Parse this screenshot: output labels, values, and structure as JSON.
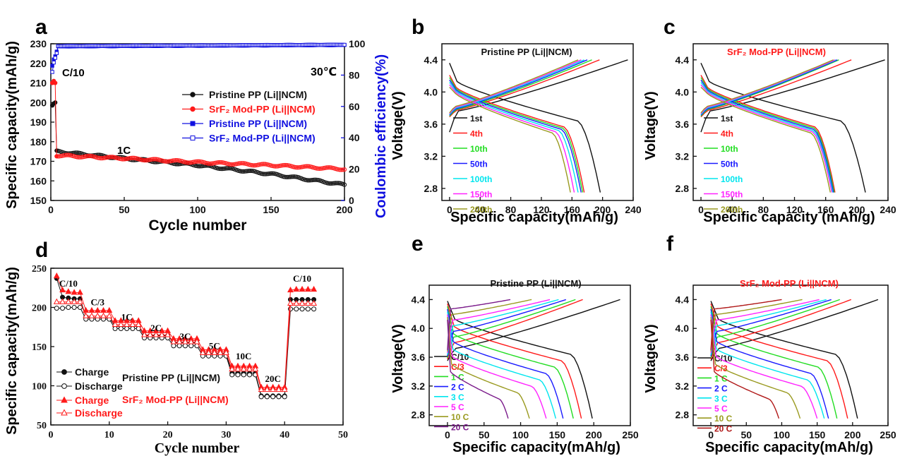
{
  "colors": {
    "black": "#111111",
    "red": "#ff1a1a",
    "blue": "#1010e0",
    "green": "#22dd22",
    "darkblue": "#1a1aff",
    "cyan": "#00e5ee",
    "magenta": "#ff22ff",
    "olive": "#9a9a20",
    "purple": "#7a1a8a",
    "darkred": "#b01818"
  },
  "chart_data": [
    {
      "id": "a",
      "type": "scatter",
      "panel_letter": "a",
      "xlabel": "Cycle number",
      "ylabel": "Specific capacity(mAh/g)",
      "y2label": "Coulombic efficiency(%)",
      "xlim": [
        0,
        200
      ],
      "ylim": [
        150,
        230
      ],
      "y2lim": [
        0,
        100
      ],
      "xticks": [
        "0",
        "50",
        "100",
        "150",
        "200"
      ],
      "yticks": [
        "150",
        "160",
        "170",
        "180",
        "190",
        "200",
        "210",
        "220",
        "230"
      ],
      "y2ticks": [
        "0",
        "20",
        "40",
        "60",
        "80",
        "100"
      ],
      "annotations": {
        "temperature": "30℃",
        "rate_low": "C/10",
        "rate_high": "1C"
      },
      "series": [
        {
          "name": "Pristine PP (Li||NCM)",
          "axis": "left",
          "marker": "half-filled circle",
          "color": "black",
          "start": [
            [
              1,
              198.5
            ],
            [
              2,
              199.5
            ],
            [
              3,
              200
            ]
          ],
          "trend": [
            [
              4,
              175
            ],
            [
              50,
              171.5
            ],
            [
              100,
              168
            ],
            [
              150,
              163.5
            ],
            [
              200,
              158
            ]
          ]
        },
        {
          "name": "SrF₂ Mod-PP (Li||NCM)",
          "axis": "left",
          "marker": "half-filled circle",
          "color": "red",
          "start": [
            [
              1,
              210
            ],
            [
              2,
              211
            ],
            [
              3,
              210
            ]
          ],
          "trend": [
            [
              4,
              173
            ],
            [
              50,
              171.5
            ],
            [
              100,
              169.5
            ],
            [
              150,
              168
            ],
            [
              200,
              166
            ]
          ]
        },
        {
          "name": "Pristine PP (Li||NCM)",
          "axis": "right",
          "marker": "filled square",
          "color": "blue",
          "start": [
            [
              1,
              86
            ],
            [
              2,
              90
            ],
            [
              3,
              92
            ],
            [
              4,
              95
            ]
          ],
          "trend": [
            [
              5,
              98.3
            ],
            [
              200,
              99.2
            ]
          ]
        },
        {
          "name": "SrF₂ Mod-PP (Li||NCM)",
          "axis": "right",
          "marker": "open square",
          "color": "blue",
          "start": [
            [
              1,
              82
            ],
            [
              2,
              88
            ],
            [
              3,
              91
            ],
            [
              4,
              94
            ]
          ],
          "trend": [
            [
              5,
              98.6
            ],
            [
              200,
              99.4
            ]
          ]
        }
      ],
      "legend": [
        {
          "label": "Pristine PP (Li||NCM)",
          "color": "black"
        },
        {
          "label": "SrF₂ Mod-PP (Li||NCM)",
          "color": "red"
        },
        {
          "label": "Pristine PP (Li||NCM)",
          "color": "blue"
        },
        {
          "label": "SrF₂ Mod-PP (Li||NCM)",
          "color": "blue"
        }
      ]
    },
    {
      "id": "b",
      "type": "line",
      "panel_letter": "b",
      "title": "Pristine PP (Li||NCM)",
      "title_color": "black",
      "xlabel": "Specific capacity(mAh/g)",
      "ylabel": "Voltage(V)",
      "xlim": [
        -10,
        240
      ],
      "ylim": [
        2.65,
        4.6
      ],
      "xticks": [
        0,
        40,
        80,
        120,
        160,
        200,
        240
      ],
      "yticks": [
        2.8,
        3.2,
        3.6,
        4.0,
        4.4
      ],
      "cycles": [
        {
          "label": "1st",
          "color": "black",
          "discharge_capacity": 197,
          "charge_capacity": 233
        },
        {
          "label": "4th",
          "color": "red",
          "discharge_capacity": 176,
          "charge_capacity": 196
        },
        {
          "label": "10th",
          "color": "green",
          "discharge_capacity": 174,
          "charge_capacity": 186
        },
        {
          "label": "50th",
          "color": "darkblue",
          "discharge_capacity": 172,
          "charge_capacity": 180
        },
        {
          "label": "100th",
          "color": "cyan",
          "discharge_capacity": 168,
          "charge_capacity": 176
        },
        {
          "label": "150th",
          "color": "magenta",
          "discharge_capacity": 163,
          "charge_capacity": 172
        },
        {
          "label": "200th",
          "color": "olive",
          "discharge_capacity": 158,
          "charge_capacity": 168
        }
      ]
    },
    {
      "id": "c",
      "type": "line",
      "panel_letter": "c",
      "title": "SrF₂ Mod-PP (Li||NCM)",
      "title_color": "red",
      "xlabel": "Specific capacity (mAh/g)",
      "ylabel": "Voltage(V)",
      "xlim": [
        -10,
        240
      ],
      "ylim": [
        2.65,
        4.6
      ],
      "xticks": [
        0,
        40,
        80,
        120,
        160,
        200,
        240
      ],
      "yticks": [
        2.8,
        3.2,
        3.6,
        4.0,
        4.4
      ],
      "cycles": [
        {
          "label": "1st",
          "color": "black",
          "discharge_capacity": 211,
          "charge_capacity": 236
        },
        {
          "label": "4th",
          "color": "red",
          "discharge_capacity": 172,
          "charge_capacity": 193
        },
        {
          "label": "10th",
          "color": "green",
          "discharge_capacity": 171,
          "charge_capacity": 177
        },
        {
          "label": "50th",
          "color": "darkblue",
          "discharge_capacity": 170,
          "charge_capacity": 175
        },
        {
          "label": "100th",
          "color": "cyan",
          "discharge_capacity": 169,
          "charge_capacity": 173
        },
        {
          "label": "150th",
          "color": "magenta",
          "discharge_capacity": 168,
          "charge_capacity": 172
        },
        {
          "label": "200th",
          "color": "olive",
          "discharge_capacity": 166,
          "charge_capacity": 170
        }
      ]
    },
    {
      "id": "d",
      "type": "scatter",
      "panel_letter": "d",
      "xlabel": "Cycle number",
      "ylabel": "Specific capacity(mAh/g)",
      "xlim": [
        0,
        50
      ],
      "ylim": [
        50,
        250
      ],
      "xticks": [
        "0",
        "10",
        "20",
        "30",
        "40",
        "50"
      ],
      "yticks": [
        "50",
        "100",
        "150",
        "200",
        "250"
      ],
      "rate_labels": [
        {
          "label": "C/10",
          "x": 3,
          "y": 225
        },
        {
          "label": "C/3",
          "x": 8,
          "y": 201
        },
        {
          "label": "1C",
          "x": 13,
          "y": 182
        },
        {
          "label": "2C",
          "x": 18,
          "y": 168
        },
        {
          "label": "3C",
          "x": 23,
          "y": 157
        },
        {
          "label": "5C",
          "x": 28,
          "y": 145
        },
        {
          "label": "10C",
          "x": 33,
          "y": 132
        },
        {
          "label": "20C",
          "x": 38,
          "y": 103
        },
        {
          "label": "C/10",
          "x": 43,
          "y": 231
        }
      ],
      "stage_note": "C/10: cycles 1-5, C/3: 6-10, 1C: 11-15, 2C: 16-20, 3C: 21-25, 5C: 26-30, 10C: 31-35, 20C: 36-40, C/10: 41-45",
      "series": [
        {
          "name": "Charge",
          "group": "Pristine PP (Li||NCM)",
          "color": "black",
          "marker": "filled circle",
          "values": [
            237,
            213,
            212,
            211,
            211,
            188,
            187,
            187,
            187,
            187,
            176,
            176,
            176,
            176,
            176,
            164,
            164,
            164,
            164,
            164,
            155,
            155,
            155,
            155,
            155,
            141,
            141,
            141,
            141,
            141,
            116,
            116,
            116,
            116,
            116,
            87,
            87,
            87,
            87,
            87,
            210,
            210,
            210,
            210,
            210
          ]
        },
        {
          "name": "Discharge",
          "group": "Pristine PP (Li||NCM)",
          "color": "black",
          "marker": "open circle",
          "values": [
            199,
            199,
            200,
            200,
            200,
            185,
            185,
            185,
            185,
            185,
            173,
            173,
            173,
            173,
            173,
            161,
            161,
            161,
            161,
            161,
            151,
            151,
            151,
            151,
            151,
            138,
            138,
            138,
            138,
            138,
            114,
            114,
            114,
            114,
            114,
            86,
            86,
            86,
            86,
            86,
            198,
            198,
            198,
            198,
            198
          ]
        },
        {
          "name": "Charge",
          "group": "SrF₂ Mod-PP (Li||NCM)",
          "color": "red",
          "marker": "filled triangle",
          "values": [
            240,
            222,
            220,
            219,
            219,
            196,
            196,
            196,
            196,
            196,
            183,
            183,
            183,
            183,
            183,
            170,
            170,
            170,
            170,
            170,
            160,
            160,
            160,
            160,
            160,
            146,
            146,
            146,
            146,
            146,
            125,
            125,
            125,
            125,
            125,
            98,
            98,
            98,
            98,
            98,
            222,
            223,
            223,
            223,
            223
          ]
        },
        {
          "name": "Discharge",
          "group": "SrF₂ Mod-PP (Li||NCM)",
          "color": "red",
          "marker": "open triangle",
          "values": [
            207,
            207,
            207,
            207,
            207,
            189,
            189,
            189,
            189,
            189,
            178,
            178,
            178,
            178,
            178,
            165,
            165,
            165,
            165,
            165,
            156,
            156,
            156,
            156,
            156,
            142,
            142,
            142,
            142,
            142,
            121,
            121,
            121,
            121,
            121,
            95,
            95,
            95,
            95,
            95,
            205,
            205,
            205,
            205,
            205
          ]
        }
      ],
      "legend": [
        {
          "label": "Charge",
          "color": "black"
        },
        {
          "label": "Discharge",
          "color": "black"
        },
        {
          "label": "Pristine PP (Li||NCM)",
          "color": "black"
        },
        {
          "label": "Charge",
          "color": "red"
        },
        {
          "label": "Discharge",
          "color": "red"
        },
        {
          "label": "SrF₂ Mod-PP (Li||NCM)",
          "color": "red"
        }
      ]
    },
    {
      "id": "e",
      "type": "line",
      "panel_letter": "e",
      "title": "Pristine PP (Li||NCM)",
      "title_color": "black",
      "xlabel": "Specific capacity(mAh/g)",
      "ylabel": "Voltage(V)",
      "xlim": [
        -25,
        250
      ],
      "ylim": [
        2.65,
        4.6
      ],
      "xticks": [
        0,
        50,
        100,
        150,
        200,
        250
      ],
      "yticks": [
        2.8,
        3.2,
        3.6,
        4.0,
        4.4
      ],
      "cycles": [
        {
          "label": "C/10",
          "color": "black",
          "discharge_capacity": 198,
          "charge_capacity": 236
        },
        {
          "label": "C/3",
          "color": "red",
          "discharge_capacity": 183,
          "charge_capacity": 185
        },
        {
          "label": "1 C",
          "color": "green",
          "discharge_capacity": 172,
          "charge_capacity": 175
        },
        {
          "label": "2 C",
          "color": "darkblue",
          "discharge_capacity": 158,
          "charge_capacity": 162
        },
        {
          "label": "3 C",
          "color": "cyan",
          "discharge_capacity": 148,
          "charge_capacity": 152
        },
        {
          "label": "5 C",
          "color": "magenta",
          "discharge_capacity": 135,
          "charge_capacity": 140
        },
        {
          "label": "10 C",
          "color": "olive",
          "discharge_capacity": 112,
          "charge_capacity": 115
        },
        {
          "label": "20 C",
          "color": "purple",
          "discharge_capacity": 83,
          "charge_capacity": 86
        }
      ]
    },
    {
      "id": "f",
      "type": "line",
      "panel_letter": "f",
      "title": "SrF₂ Mod-PP (Li||NCM)",
      "title_color": "red",
      "xlabel": "Specific capacity(mAh/g)",
      "ylabel": "Voltage(V)",
      "xlim": [
        -25,
        250
      ],
      "ylim": [
        2.65,
        4.6
      ],
      "xticks": [
        0,
        50,
        100,
        150,
        200,
        250
      ],
      "yticks": [
        2.8,
        3.2,
        3.6,
        4.0,
        4.4
      ],
      "cycles": [
        {
          "label": "C/10",
          "color": "black",
          "discharge_capacity": 207,
          "charge_capacity": 236
        },
        {
          "label": "C/3",
          "color": "red",
          "discharge_capacity": 193,
          "charge_capacity": 198
        },
        {
          "label": "1 C",
          "color": "green",
          "discharge_capacity": 178,
          "charge_capacity": 182
        },
        {
          "label": "2 C",
          "color": "darkblue",
          "discharge_capacity": 166,
          "charge_capacity": 170
        },
        {
          "label": "3 C",
          "color": "cyan",
          "discharge_capacity": 160,
          "charge_capacity": 163
        },
        {
          "label": "5 C",
          "color": "magenta",
          "discharge_capacity": 150,
          "charge_capacity": 153
        },
        {
          "label": "10 C",
          "color": "olive",
          "discharge_capacity": 126,
          "charge_capacity": 129
        },
        {
          "label": "20 C",
          "color": "darkred",
          "discharge_capacity": 96,
          "charge_capacity": 100
        }
      ]
    }
  ]
}
